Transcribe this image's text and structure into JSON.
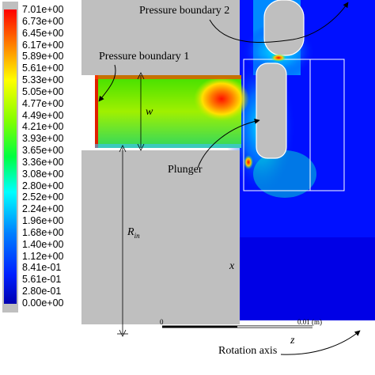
{
  "colorbar": {
    "labels": [
      "7.01e+00",
      "6.73e+00",
      "6.45e+00",
      "6.17e+00",
      "5.89e+00",
      "5.61e+00",
      "5.33e+00",
      "5.05e+00",
      "4.77e+00",
      "4.49e+00",
      "4.21e+00",
      "3.93e+00",
      "3.65e+00",
      "3.36e+00",
      "3.08e+00",
      "2.80e+00",
      "2.52e+00",
      "2.24e+00",
      "1.96e+00",
      "1.68e+00",
      "1.40e+00",
      "1.12e+00",
      "8.41e-01",
      "5.61e-01",
      "2.80e-01",
      "0.00e+00"
    ],
    "colors": [
      "#ff0000",
      "#ff3000",
      "#ff6000",
      "#ff9000",
      "#ffb800",
      "#ffd800",
      "#ffff00",
      "#d8ff00",
      "#b0ff00",
      "#80ff00",
      "#50ff00",
      "#20ff00",
      "#00ff20",
      "#00ff60",
      "#00ff98",
      "#00ffc8",
      "#00ffff",
      "#00d8ff",
      "#00b0ff",
      "#0088ff",
      "#0060ff",
      "#0040ff",
      "#0020ff",
      "#0000f0",
      "#0000d0",
      "#0000b0"
    ]
  },
  "annotations": {
    "pressure_boundary_1": "Pressure boundary 1",
    "pressure_boundary_2": "Pressure boundary 2",
    "plunger": "Plunger",
    "rotation_axis": "Rotation axis",
    "w": "w",
    "r_in": "R",
    "r_in_sub": "in",
    "x_axis": "x",
    "z_axis": "z",
    "scale_zero": "0",
    "scale_end": "0.01 (m)"
  },
  "colors": {
    "background": "#ffffff",
    "field_low": "#0000e0",
    "field_mid": "#00ff80",
    "field_high": "#ff0000",
    "wall_gray": "#bfbfbf"
  }
}
